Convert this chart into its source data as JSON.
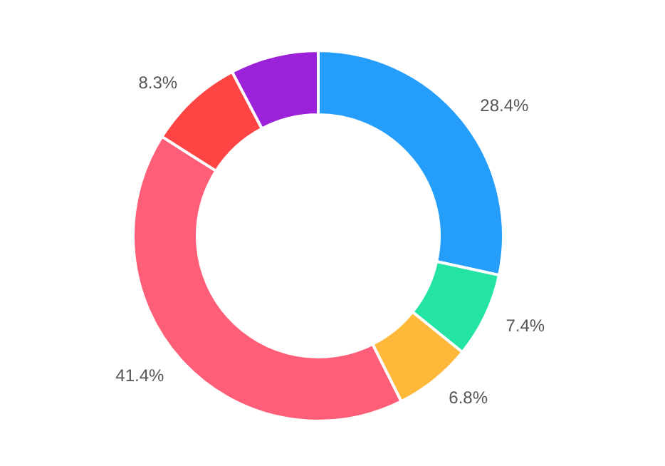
{
  "chart_data": {
    "type": "donut",
    "categories": [
      null,
      null,
      null,
      null,
      null,
      null
    ],
    "values": [
      28.4,
      7.4,
      6.8,
      41.4,
      8.3,
      7.7
    ],
    "colors": [
      "#249efa",
      "#24e4a4",
      "#ffb93a",
      "#ff5e78",
      "#ff4444",
      "#9b22d9"
    ],
    "value_labels": [
      "28.4%",
      "7.4%",
      "6.8%",
      "41.4%",
      "8.3%",
      null
    ]
  }
}
